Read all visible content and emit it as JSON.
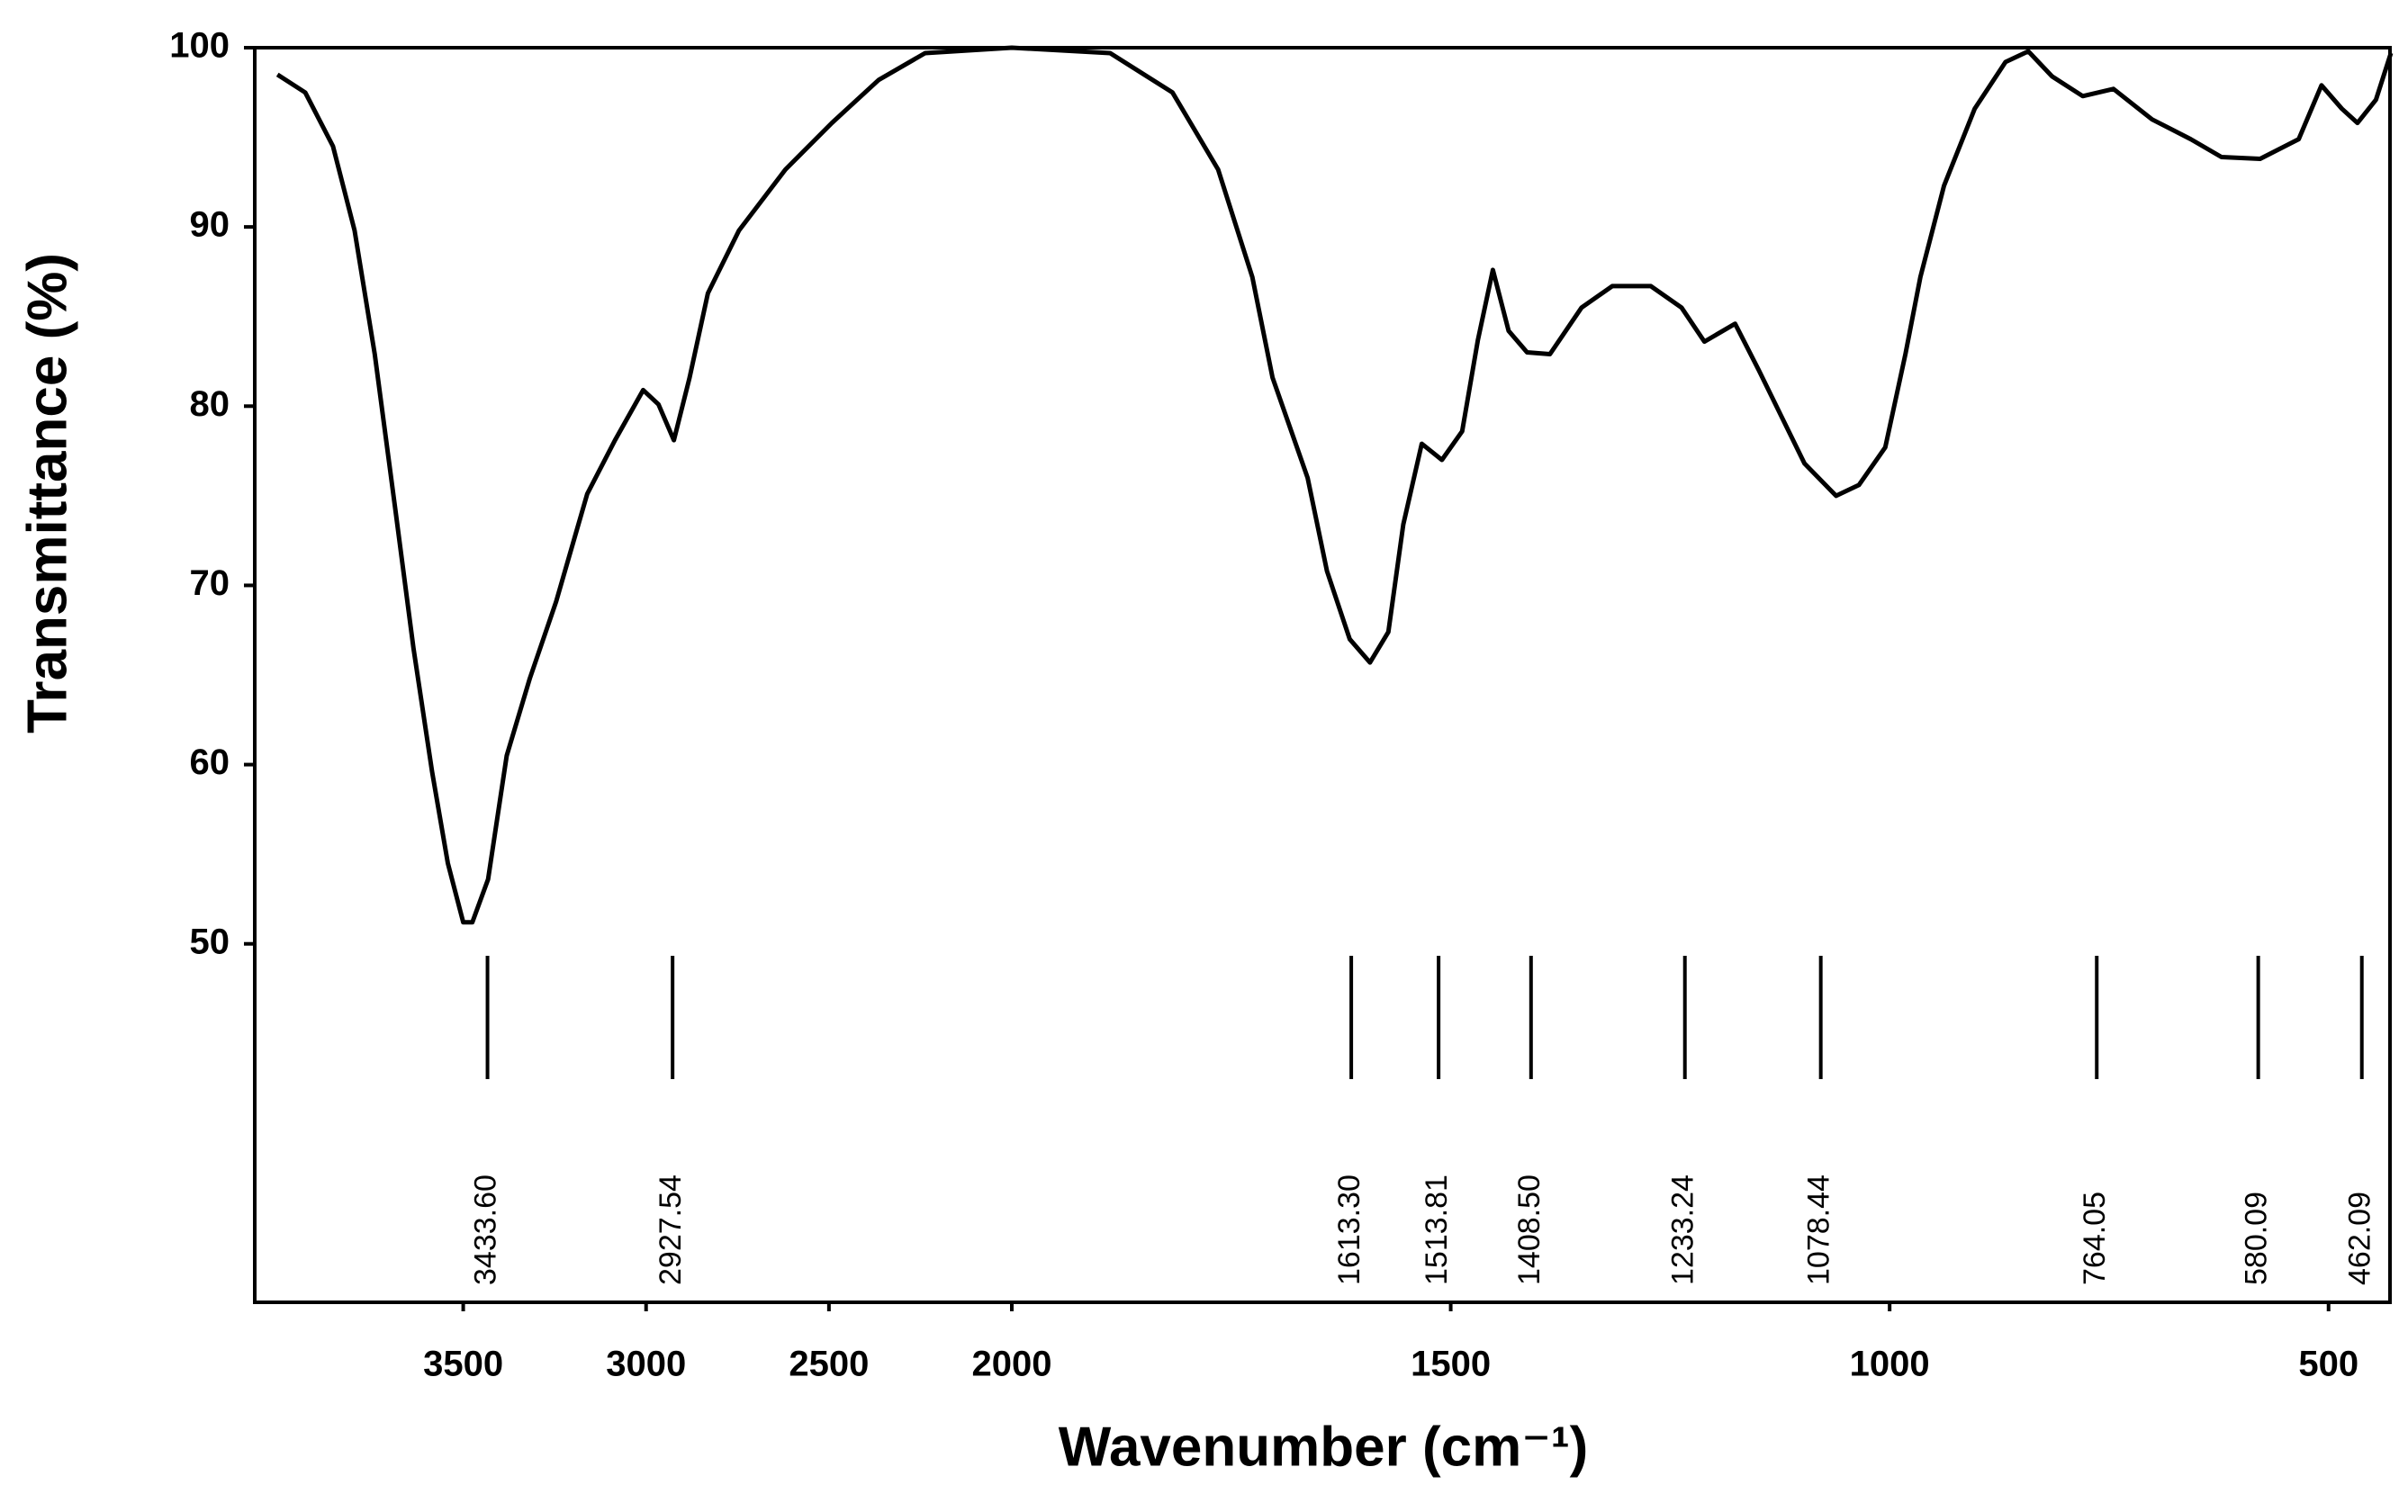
{
  "chart_data": {
    "type": "line",
    "xlabel": "Wavenumber (cm⁻¹)",
    "ylabel": "Transmittance (%)",
    "xlim": [
      4070,
      430
    ],
    "xbreak": 2000,
    "ylim": [
      30,
      100
    ],
    "xticks": [
      3500,
      3000,
      2500,
      2000,
      1500,
      1000,
      500
    ],
    "yticks": [
      50,
      60,
      70,
      80,
      90,
      100
    ],
    "color": "#000000",
    "grid": false,
    "x": [
      4008,
      3932,
      3856,
      3797,
      3742,
      3686,
      3636,
      3585,
      3542,
      3500,
      3475,
      3432,
      3381,
      3318,
      3246,
      3161,
      3085,
      3008,
      2966,
      2924,
      2881,
      2831,
      2746,
      2619,
      2492,
      2364,
      2237,
      2000,
      1888,
      1817,
      1765,
      1726,
      1703,
      1663,
      1641,
      1615,
      1592,
      1571,
      1554,
      1533,
      1510,
      1487,
      1469,
      1452,
      1434,
      1413,
      1387,
      1351,
      1316,
      1272,
      1237,
      1211,
      1176,
      1149,
      1123,
      1097,
      1061,
      1035,
      1005,
      982,
      965,
      938,
      903,
      868,
      842,
      815,
      780,
      745,
      701,
      657,
      622,
      578,
      534,
      508,
      485,
      467,
      446,
      429
    ],
    "values": [
      98.5,
      97.5,
      94.5,
      89.8,
      82.9,
      74.3,
      66.5,
      59.6,
      54.5,
      51.2,
      51.2,
      53.6,
      60.5,
      64.8,
      69.1,
      75.1,
      78.1,
      80.9,
      80.1,
      78.1,
      81.6,
      86.3,
      89.8,
      93.2,
      95.8,
      98.2,
      99.7,
      100,
      99.7,
      97.5,
      93.2,
      87.2,
      81.6,
      76.0,
      70.8,
      67.0,
      65.7,
      67.4,
      73.4,
      77.9,
      77.0,
      78.6,
      83.7,
      87.6,
      84.2,
      83.0,
      82.9,
      85.5,
      86.7,
      86.7,
      85.5,
      83.6,
      84.6,
      82.0,
      79.4,
      76.8,
      75.0,
      75.6,
      77.7,
      82.9,
      87.2,
      92.3,
      96.6,
      99.2,
      99.8,
      98.4,
      97.3,
      97.7,
      96.0,
      94.9,
      93.9,
      93.8,
      94.9,
      97.9,
      96.6,
      95.8,
      97.1,
      99.7
    ],
    "peaks": [
      {
        "value": 3433.6,
        "label": "3433.60"
      },
      {
        "value": 2927.54,
        "label": "2927.54"
      },
      {
        "value": 1613.3,
        "label": "1613.30"
      },
      {
        "value": 1513.81,
        "label": "1513.81"
      },
      {
        "value": 1408.5,
        "label": "1408.50"
      },
      {
        "value": 1233.24,
        "label": "1233.24"
      },
      {
        "value": 1078.44,
        "label": "1078.44"
      },
      {
        "value": 764.05,
        "label": "764.05"
      },
      {
        "value": 580.09,
        "label": "580.09"
      },
      {
        "value": 462.09,
        "label": "462.09"
      }
    ]
  }
}
